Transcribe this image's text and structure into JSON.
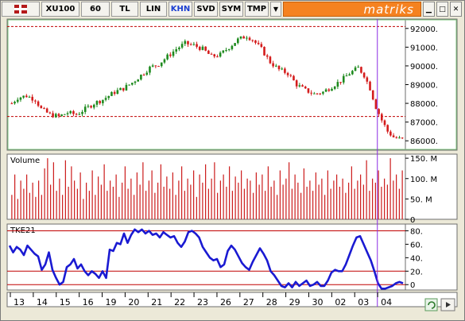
{
  "toolbar": {
    "symbol": "XU100",
    "interval": "60",
    "currency": "TL",
    "scale": "LIN",
    "btn_khn": "KHN",
    "btn_svd": "SVD",
    "btn_sym": "SYM",
    "btn_tmp": "TMP",
    "dropdown_icon": "chevron-down-icon",
    "logo": "matriks",
    "min_icon": "minimize-icon",
    "max_icon": "maximize-icon",
    "close_icon": "close-icon"
  },
  "colors": {
    "up": "#1e8a1e",
    "down": "#d41c1c",
    "volume": "#cc1b1b",
    "tke": "#1a1ad2",
    "cursor": "#8a2be2",
    "refline": "#c00000",
    "accent": "#f58220"
  },
  "chart_data": [
    {
      "type": "candlestick",
      "ylim": [
        85500,
        92500
      ],
      "yticks": [
        "92000.",
        "91000.",
        "90000.",
        "89000.",
        "88000.",
        "87000.",
        "86000."
      ],
      "ytick_values": [
        92000,
        91000,
        90000,
        89000,
        88000,
        87000,
        86000
      ],
      "reference_lines": [
        92100,
        87300
      ],
      "grid": false,
      "x_labels": [
        "13",
        "14",
        "15",
        "16",
        "19",
        "20",
        "21",
        "22",
        "23",
        "26",
        "27",
        "28",
        "29",
        "30",
        "02",
        "03",
        "04"
      ],
      "close_path": [
        [
          0,
          88000
        ],
        [
          2,
          88300
        ],
        [
          5,
          88400
        ],
        [
          8,
          88200
        ],
        [
          10,
          87700
        ],
        [
          13,
          87400
        ],
        [
          16,
          87300
        ],
        [
          19,
          87500
        ],
        [
          22,
          87400
        ],
        [
          25,
          87700
        ],
        [
          28,
          88000
        ],
        [
          31,
          88200
        ],
        [
          35,
          88600
        ],
        [
          38,
          88800
        ],
        [
          41,
          89100
        ],
        [
          44,
          89500
        ],
        [
          47,
          89900
        ],
        [
          50,
          90100
        ],
        [
          53,
          90500
        ],
        [
          56,
          90900
        ],
        [
          59,
          91200
        ],
        [
          62,
          91100
        ],
        [
          65,
          90900
        ],
        [
          68,
          90500
        ],
        [
          71,
          90600
        ],
        [
          74,
          91000
        ],
        [
          77,
          91400
        ],
        [
          80,
          91600
        ],
        [
          82,
          91400
        ],
        [
          85,
          90900
        ],
        [
          88,
          90200
        ],
        [
          91,
          89800
        ],
        [
          94,
          89600
        ],
        [
          97,
          89000
        ],
        [
          100,
          88700
        ],
        [
          103,
          88500
        ],
        [
          106,
          88600
        ],
        [
          109,
          88900
        ],
        [
          112,
          89200
        ],
        [
          115,
          89600
        ],
        [
          118,
          89900
        ],
        [
          120,
          89500
        ],
        [
          122,
          88800
        ],
        [
          124,
          87800
        ],
        [
          126,
          87100
        ],
        [
          128,
          86500
        ],
        [
          130,
          86200
        ],
        [
          132,
          86100
        ]
      ]
    },
    {
      "type": "bar",
      "title": "Volume",
      "ylim": [
        0,
        160
      ],
      "yticks": [
        "150. M",
        "100. M",
        "50. M",
        "0"
      ],
      "ytick_values": [
        150,
        100,
        50,
        0
      ],
      "values": [
        60,
        110,
        50,
        95,
        75,
        110,
        65,
        90,
        55,
        95,
        60,
        125,
        150,
        85,
        140,
        70,
        100,
        60,
        145,
        80,
        130,
        95,
        75,
        115,
        50,
        90,
        70,
        120,
        60,
        105,
        85,
        135,
        70,
        95,
        80,
        110,
        55,
        90,
        130,
        75,
        100,
        60,
        115,
        85,
        140,
        70,
        95,
        120,
        65,
        90,
        135,
        80,
        105,
        75,
        115,
        60,
        95,
        130,
        70,
        100,
        85,
        120,
        55,
        110,
        90,
        135,
        75,
        100,
        140,
        65,
        95,
        110,
        80,
        130,
        70,
        105,
        90,
        120,
        75,
        100,
        95,
        65,
        115,
        85,
        110,
        70,
        130,
        80,
        95,
        60,
        120,
        85,
        100,
        140,
        75,
        110,
        90,
        65,
        125,
        80,
        95,
        70,
        115,
        85,
        100,
        60,
        120,
        75,
        95,
        110,
        80,
        100,
        65,
        90,
        130,
        75,
        95,
        110,
        85,
        145,
        70,
        100,
        90,
        120,
        80,
        100,
        85,
        150,
        95,
        110,
        75,
        120
      ]
    },
    {
      "type": "line",
      "title": "TKE21",
      "ylim": [
        -8,
        90
      ],
      "yticks": [
        "80.",
        "60.",
        "40.",
        "20.",
        "0"
      ],
      "ytick_values": [
        80,
        60,
        40,
        20,
        0
      ],
      "reference_lines": [
        80,
        20,
        0
      ],
      "values": [
        58,
        48,
        56,
        52,
        44,
        58,
        52,
        46,
        42,
        22,
        30,
        48,
        22,
        10,
        0,
        4,
        26,
        30,
        38,
        24,
        30,
        20,
        14,
        20,
        16,
        10,
        20,
        10,
        52,
        50,
        62,
        60,
        76,
        62,
        74,
        82,
        78,
        82,
        76,
        80,
        74,
        76,
        70,
        78,
        74,
        70,
        72,
        62,
        56,
        64,
        78,
        80,
        76,
        70,
        56,
        48,
        40,
        36,
        38,
        26,
        30,
        50,
        58,
        52,
        42,
        32,
        26,
        22,
        34,
        44,
        54,
        46,
        36,
        20,
        14,
        6,
        -2,
        -4,
        2,
        -4,
        4,
        -2,
        2,
        6,
        -2,
        0,
        4,
        -2,
        -2,
        6,
        18,
        22,
        20,
        20,
        30,
        44,
        58,
        70,
        72,
        60,
        48,
        36,
        20,
        2,
        -6,
        -6,
        -4,
        -2,
        2,
        4,
        2
      ]
    }
  ]
}
